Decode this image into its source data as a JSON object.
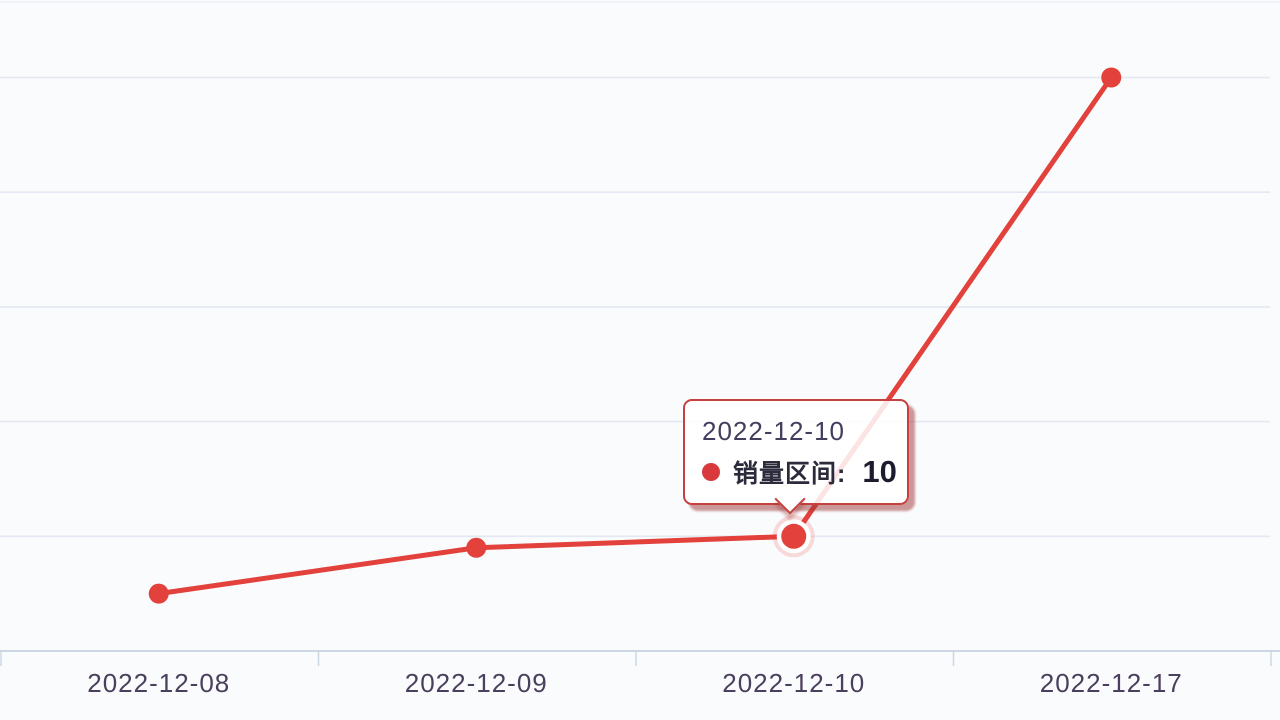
{
  "chart_data": {
    "type": "line",
    "title": "",
    "categories": [
      "2022-12-08",
      "2022-12-09",
      "2022-12-10",
      "2022-12-17"
    ],
    "series": [
      {
        "name": "销量区间",
        "values": [
          5,
          9,
          10,
          50
        ]
      }
    ],
    "xlabel": "",
    "ylabel": "",
    "ylim": [
      0,
      50
    ],
    "grid": "horizontal gridlines every 10 units, no y-axis tick labels visible",
    "legend_position": "none",
    "highlighted_point": {
      "category": "2022-12-10",
      "series": "销量区间",
      "value": 10,
      "index": 2
    }
  },
  "tooltip": {
    "title": "2022-12-10",
    "series_label": "销量区间:",
    "value": "10"
  },
  "colors": {
    "line": "#e2413c",
    "point_fill": "#e2413c",
    "highlight_halo": "rgba(226,65,60,0.18)",
    "tooltip_border": "#c5403f",
    "tooltip_shadow": "rgba(158,52,52,0.5)",
    "tooltip_dot": "#d8393c",
    "axis_line": "#cdd7e2",
    "gridline": "#e3e9f2",
    "axis_label_text": "#4a3f5d",
    "background": "#fafbfd"
  }
}
